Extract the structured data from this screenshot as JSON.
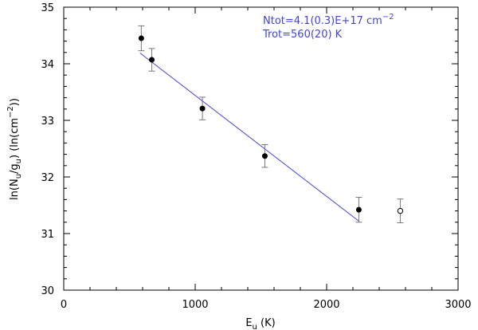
{
  "chart_data": {
    "type": "scatter",
    "title": "",
    "xlabel": {
      "main": "E",
      "sub": "u",
      "unit": " (K)"
    },
    "ylabel": {
      "pre": "ln(N",
      "sub1": "u",
      "mid": "/g",
      "sub2": "u",
      "post": ") (ln(cm",
      "sup": "−2",
      "end": "))"
    },
    "xlim": [
      0,
      3000
    ],
    "ylim": [
      30,
      35
    ],
    "xticks": [
      0,
      1000,
      2000,
      3000
    ],
    "yticks": [
      30,
      31,
      32,
      33,
      34,
      35
    ],
    "grid": false,
    "series": [
      {
        "marker": "filled-circle",
        "points": [
          {
            "x": 590,
            "y": 34.45,
            "err": 0.22
          },
          {
            "x": 670,
            "y": 34.07,
            "err": 0.2
          },
          {
            "x": 1055,
            "y": 33.21,
            "err": 0.2
          },
          {
            "x": 1530,
            "y": 32.37,
            "err": 0.2
          },
          {
            "x": 2245,
            "y": 31.42,
            "err": 0.22
          }
        ]
      },
      {
        "marker": "open-circle",
        "points": [
          {
            "x": 2560,
            "y": 31.4,
            "err": 0.21
          }
        ]
      }
    ],
    "fit_line": {
      "x": [
        580,
        2245
      ],
      "y": [
        34.19,
        31.22
      ],
      "color": "#4444dd"
    },
    "annotations": [
      {
        "parts": [
          "Ntot=4.1(0.3)E+17 cm",
          "−2"
        ]
      },
      {
        "parts": [
          "Trot=560(20) K"
        ]
      }
    ],
    "colors": {
      "axis": "#000000",
      "fit": "#4444dd",
      "annotation": "#4444dd",
      "points": "#000000",
      "errorbars": "#777777"
    }
  }
}
